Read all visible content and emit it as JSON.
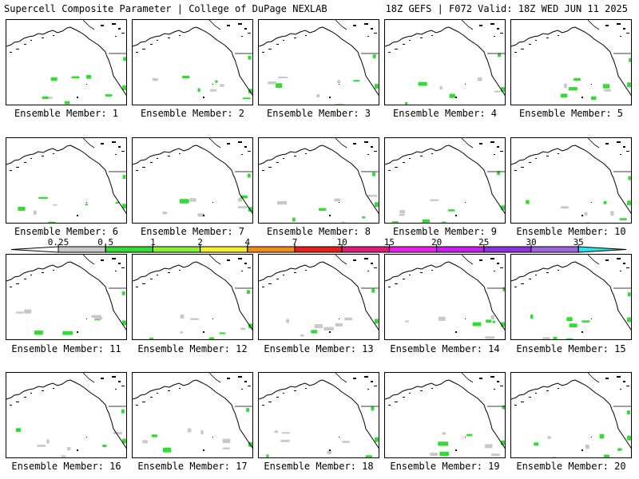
{
  "header": {
    "title_left": "Supercell Composite Parameter | College of DuPage NEXLAB",
    "title_right": "18Z GEFS | F072 Valid: 18Z WED JUN 11 2025"
  },
  "panels": [
    {
      "label": "Ensemble Member: 1"
    },
    {
      "label": "Ensemble Member: 2"
    },
    {
      "label": "Ensemble Member: 3"
    },
    {
      "label": "Ensemble Member: 4"
    },
    {
      "label": "Ensemble Member: 5"
    },
    {
      "label": "Ensemble Member: 6"
    },
    {
      "label": "Ensemble Member: 7"
    },
    {
      "label": "Ensemble Member: 8"
    },
    {
      "label": "Ensemble Member: 9"
    },
    {
      "label": "Ensemble Member: 10"
    },
    {
      "label": "Ensemble Member: 11"
    },
    {
      "label": "Ensemble Member: 12"
    },
    {
      "label": "Ensemble Member: 13"
    },
    {
      "label": "Ensemble Member: 14"
    },
    {
      "label": "Ensemble Member: 15"
    },
    {
      "label": "Ensemble Member: 16"
    },
    {
      "label": "Ensemble Member: 17"
    },
    {
      "label": "Ensemble Member: 18"
    },
    {
      "label": "Ensemble Member: 19"
    },
    {
      "label": "Ensemble Member: 20"
    }
  ],
  "colorbar": {
    "labels": [
      "0.25",
      "0.5",
      "1",
      "2",
      "4",
      "7",
      "10",
      "15",
      "20",
      "25",
      "30",
      "35"
    ],
    "colors": [
      "#c8c8c8",
      "#32dc32",
      "#8cf032",
      "#f0f032",
      "#f08c1e",
      "#e61e1e",
      "#dc1e78",
      "#e61ee6",
      "#c81ef0",
      "#8c32dc",
      "#a064dc",
      "#28e6f0"
    ]
  },
  "map_colors": {
    "land": "#ffffff",
    "coast": "#000000",
    "low_scp": "#c8c8c8",
    "mid_scp": "#32dc32"
  }
}
